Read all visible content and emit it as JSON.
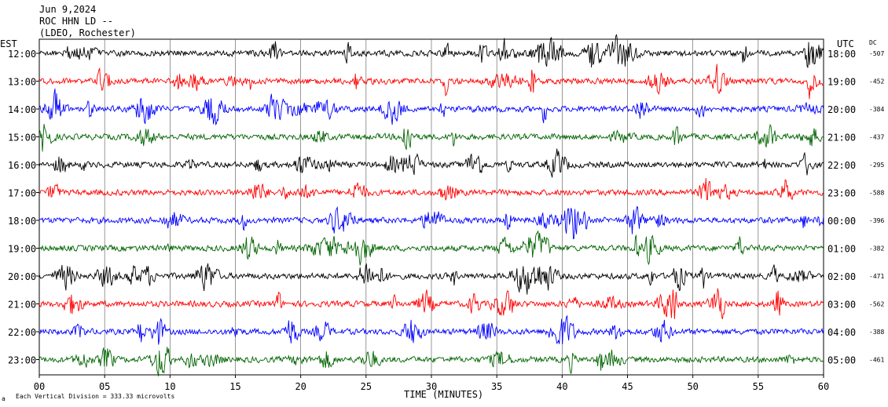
{
  "header": {
    "date": "Jun 9,2024",
    "station": "ROC HHN LD --",
    "network": "(LDEO, Rochester)"
  },
  "chart_data": {
    "type": "line",
    "left_axis_title": "EST",
    "right_axis_title": "UTC",
    "dc_title": "DC",
    "xlabel": "TIME (MINUTES)",
    "xlim": [
      0,
      60
    ],
    "x_ticks": [
      "00",
      "05",
      "10",
      "15",
      "20",
      "25",
      "30",
      "35",
      "40",
      "45",
      "50",
      "55",
      "60"
    ],
    "footer_note": "Each Vertical Division = 333.33 microvolts",
    "rows": [
      {
        "est": "12:00",
        "utc": "18:00",
        "dc": "-507",
        "color": "#000000"
      },
      {
        "est": "13:00",
        "utc": "19:00",
        "dc": "-452",
        "color": "#ff0000"
      },
      {
        "est": "14:00",
        "utc": "20:00",
        "dc": "-384",
        "color": "#0000ff"
      },
      {
        "est": "15:00",
        "utc": "21:00",
        "dc": "-437",
        "color": "#006400"
      },
      {
        "est": "16:00",
        "utc": "22:00",
        "dc": "-295",
        "color": "#000000"
      },
      {
        "est": "17:00",
        "utc": "23:00",
        "dc": "-588",
        "color": "#ff0000"
      },
      {
        "est": "18:00",
        "utc": "00:00",
        "dc": "-396",
        "color": "#0000ff"
      },
      {
        "est": "19:00",
        "utc": "01:00",
        "dc": "-382",
        "color": "#006400"
      },
      {
        "est": "20:00",
        "utc": "02:00",
        "dc": "-471",
        "color": "#000000"
      },
      {
        "est": "21:00",
        "utc": "03:00",
        "dc": "-562",
        "color": "#ff0000"
      },
      {
        "est": "22:00",
        "utc": "04:00",
        "dc": "-388",
        "color": "#0000ff"
      },
      {
        "est": "23:00",
        "utc": "05:00",
        "dc": "-461",
        "color": "#006400"
      }
    ],
    "grid": true
  }
}
